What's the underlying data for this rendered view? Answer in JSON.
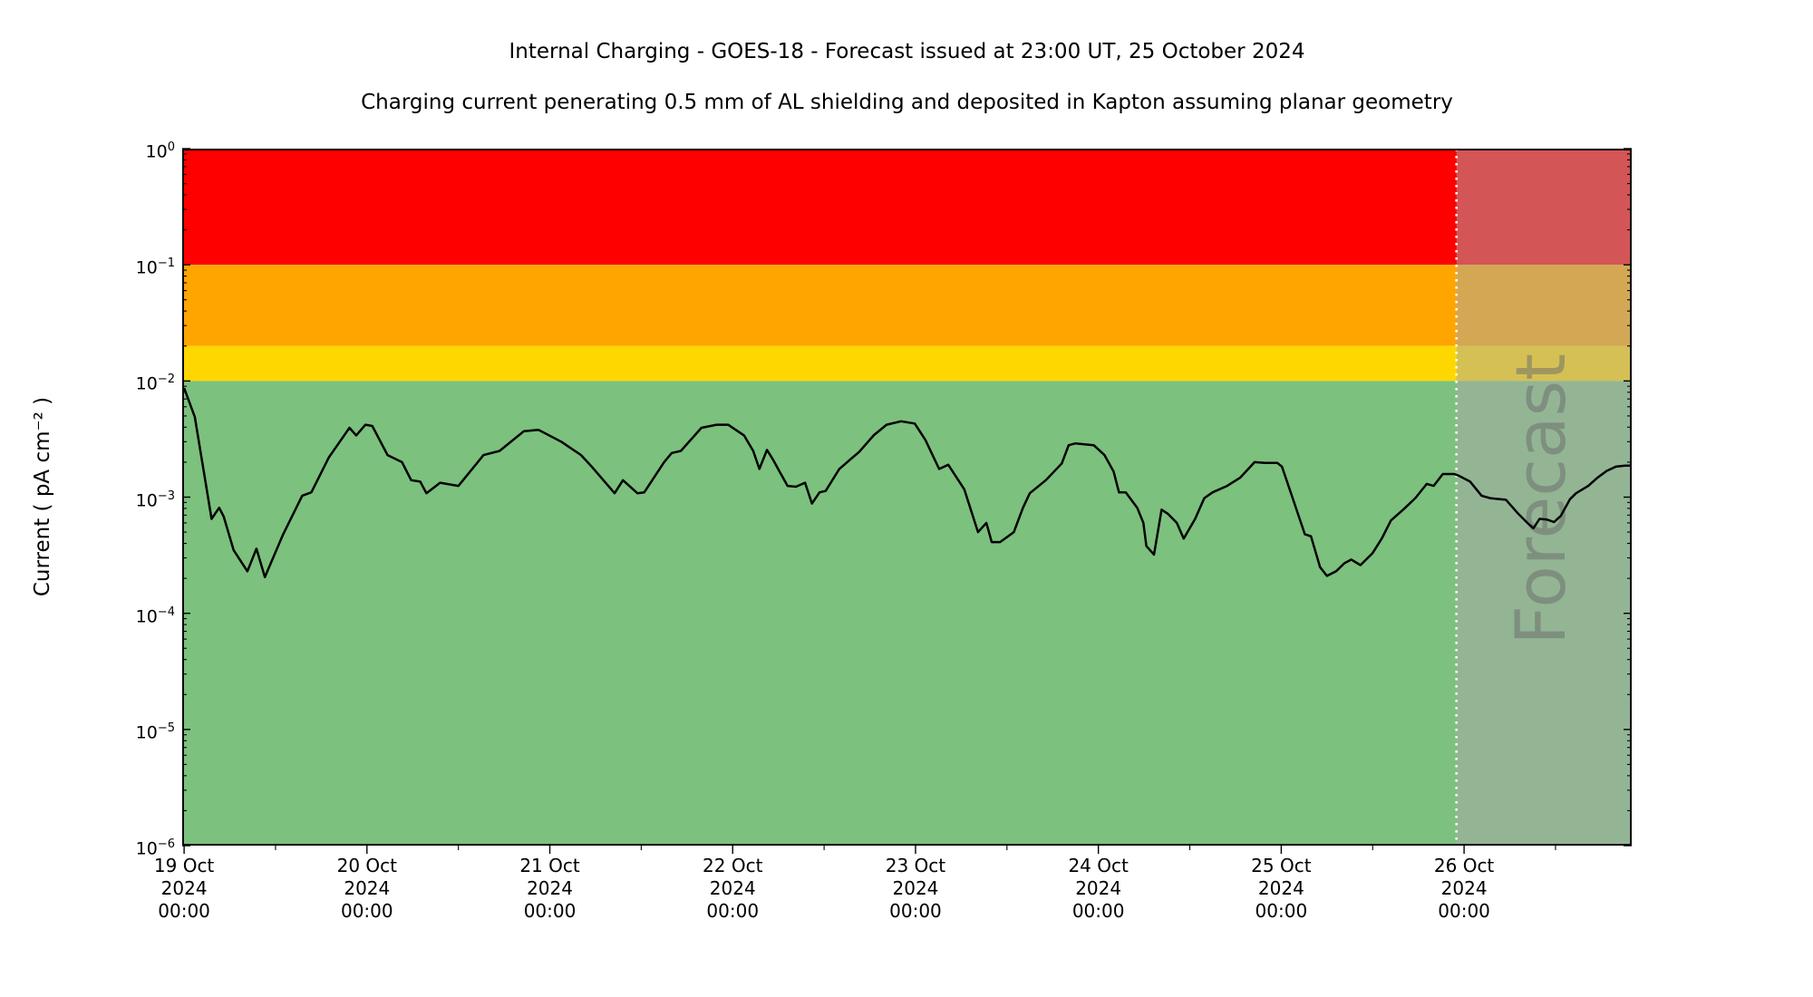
{
  "header": {
    "title": "Internal Charging - GOES-18 - Forecast issued at 23:00 UT, 25 October 2024",
    "subtitle": "Charging current penerating 0.5 mm of AL shielding and deposited in Kapton assuming planar geometry"
  },
  "chart_data": {
    "type": "line",
    "title": "Internal Charging - GOES-18 - Forecast issued at 23:00 UT, 25 October 2024",
    "subtitle": "Charging current penerating 0.5 mm of AL shielding and deposited in Kapton assuming planar geometry",
    "ylabel": "Current ( pA cm⁻² )",
    "xlabel": "",
    "grid": false,
    "y_axis": {
      "scale": "log",
      "ylim": [
        1e-06,
        1.0
      ],
      "major_tick_exponents": [
        0,
        -1,
        -2,
        -3,
        -4,
        -5,
        -6
      ],
      "tick_base": "10"
    },
    "x_axis": {
      "min_hours": -0.25,
      "max_hours": 190.0,
      "hours_origin": "19 Oct 2024 00:00",
      "major_tick_hours": [
        0,
        24,
        48,
        72,
        96,
        120,
        144,
        168
      ],
      "major_tick_labels": [
        [
          "19 Oct",
          "2024",
          "00:00"
        ],
        [
          "20 Oct",
          "2024",
          "00:00"
        ],
        [
          "21 Oct",
          "2024",
          "00:00"
        ],
        [
          "22 Oct",
          "2024",
          "00:00"
        ],
        [
          "23 Oct",
          "2024",
          "00:00"
        ],
        [
          "24 Oct",
          "2024",
          "00:00"
        ],
        [
          "25 Oct",
          "2024",
          "00:00"
        ],
        [
          "26 Oct",
          "2024",
          "00:00"
        ]
      ],
      "minor_tick_hours": [
        12,
        36,
        60,
        84,
        108,
        132,
        156,
        180
      ]
    },
    "threshold_bands": [
      {
        "name": "red-alert-band",
        "vmin": 0.1,
        "vmax": 1.0,
        "color": "#fe0000"
      },
      {
        "name": "orange-alert-band",
        "vmin": 0.02,
        "vmax": 0.1,
        "color": "#ffa500"
      },
      {
        "name": "yellow-alert-band",
        "vmin": 0.01,
        "vmax": 0.02,
        "color": "#ffd700"
      },
      {
        "name": "green-safe-band",
        "vmin": 1e-06,
        "vmax": 0.01,
        "color": "#7cc17e"
      }
    ],
    "forecast": {
      "start_hour": 167,
      "issued": "23:00 UT, 25 October 2024",
      "label": "Forecast",
      "label_color": "rgba(105,105,105,0.5)",
      "overlay_color": "rgba(169,169,169,0.5)",
      "divider_color": "#ffffff",
      "divider_style": "dotted"
    },
    "series": [
      {
        "name": "charging-current",
        "color": "#000000",
        "width": 2.5,
        "points": [
          [
            0,
            0.0087
          ],
          [
            1.4,
            0.0049
          ],
          [
            3.6,
            0.00065
          ],
          [
            4.6,
            0.00081
          ],
          [
            5.2,
            0.00068
          ],
          [
            6.5,
            0.00035
          ],
          [
            8.3,
            0.00023
          ],
          [
            9.5,
            0.00036
          ],
          [
            10.6,
            0.000205
          ],
          [
            13,
            0.00048
          ],
          [
            15.5,
            0.00103
          ],
          [
            16.7,
            0.0011
          ],
          [
            19,
            0.0022
          ],
          [
            21.7,
            0.00395
          ],
          [
            22.6,
            0.0034
          ],
          [
            23.8,
            0.0042
          ],
          [
            24.7,
            0.0041
          ],
          [
            26.7,
            0.0023
          ],
          [
            28.6,
            0.002
          ],
          [
            29.8,
            0.0014
          ],
          [
            31,
            0.00136
          ],
          [
            31.8,
            0.00108
          ],
          [
            33.6,
            0.00133
          ],
          [
            36,
            0.00125
          ],
          [
            39.3,
            0.0023
          ],
          [
            41.4,
            0.0025
          ],
          [
            44.6,
            0.0037
          ],
          [
            46.5,
            0.0038
          ],
          [
            49.5,
            0.003
          ],
          [
            52.1,
            0.0023
          ],
          [
            53.6,
            0.0018
          ],
          [
            56.5,
            0.00108
          ],
          [
            57.6,
            0.0014
          ],
          [
            59.5,
            0.00108
          ],
          [
            60.4,
            0.0011
          ],
          [
            63,
            0.002
          ],
          [
            64,
            0.0024
          ],
          [
            65.2,
            0.0025
          ],
          [
            67.9,
            0.00395
          ],
          [
            69.9,
            0.0042
          ],
          [
            71.4,
            0.0042
          ],
          [
            73.5,
            0.0034
          ],
          [
            74.7,
            0.0025
          ],
          [
            75.5,
            0.00175
          ],
          [
            76.5,
            0.00255
          ],
          [
            77.3,
            0.0021
          ],
          [
            78,
            0.00173
          ],
          [
            79.2,
            0.00125
          ],
          [
            80.3,
            0.00123
          ],
          [
            81.5,
            0.00133
          ],
          [
            82.4,
            0.00088
          ],
          [
            83.4,
            0.0011
          ],
          [
            84.2,
            0.00113
          ],
          [
            86,
            0.00175
          ],
          [
            87.4,
            0.0021
          ],
          [
            88.6,
            0.00245
          ],
          [
            90.5,
            0.0034
          ],
          [
            92.2,
            0.0042
          ],
          [
            94.1,
            0.0045
          ],
          [
            95.9,
            0.0043
          ],
          [
            97.3,
            0.0031
          ],
          [
            99.1,
            0.00175
          ],
          [
            100.3,
            0.0019
          ],
          [
            102.4,
            0.00117
          ],
          [
            104.2,
            0.0005
          ],
          [
            105.3,
            0.0006
          ],
          [
            106,
            0.00041
          ],
          [
            107.1,
            0.00041
          ],
          [
            108.9,
            0.0005
          ],
          [
            110.1,
            0.00081
          ],
          [
            111,
            0.00108
          ],
          [
            113.1,
            0.0014
          ],
          [
            115.2,
            0.00195
          ],
          [
            116.1,
            0.0028
          ],
          [
            117,
            0.0029
          ],
          [
            119.4,
            0.0028
          ],
          [
            120.8,
            0.0023
          ],
          [
            122,
            0.00166
          ],
          [
            122.7,
            0.0011
          ],
          [
            123.6,
            0.0011
          ],
          [
            125.1,
            0.00081
          ],
          [
            125.9,
            0.0006
          ],
          [
            126.3,
            0.00038
          ],
          [
            127.3,
            0.00032
          ],
          [
            128.3,
            0.00078
          ],
          [
            129.1,
            0.00072
          ],
          [
            130.3,
            0.0006
          ],
          [
            131.2,
            0.00044
          ],
          [
            132.7,
            0.00065
          ],
          [
            133.9,
            0.00098
          ],
          [
            135,
            0.0011
          ],
          [
            136.9,
            0.00125
          ],
          [
            138.6,
            0.00147
          ],
          [
            140.5,
            0.002
          ],
          [
            141.9,
            0.00197
          ],
          [
            143.5,
            0.00197
          ],
          [
            144.1,
            0.00183
          ],
          [
            145.5,
            0.00098
          ],
          [
            147.1,
            0.00048
          ],
          [
            147.9,
            0.00046
          ],
          [
            149.1,
            0.00025
          ],
          [
            150,
            0.00021
          ],
          [
            151.2,
            0.00023
          ],
          [
            152.3,
            0.00027
          ],
          [
            153.2,
            0.00029
          ],
          [
            154.4,
            0.00026
          ],
          [
            156,
            0.00033
          ],
          [
            157.2,
            0.00044
          ],
          [
            158.4,
            0.00063
          ],
          [
            160,
            0.00078
          ],
          [
            161.6,
            0.00098
          ],
          [
            163.1,
            0.0013
          ],
          [
            164,
            0.00125
          ],
          [
            165.2,
            0.00158
          ],
          [
            166.7,
            0.00158
          ],
          [
            167.3,
            0.00153
          ],
          [
            168.8,
            0.00136
          ],
          [
            170.3,
            0.00103
          ],
          [
            171.4,
            0.00098
          ],
          [
            172.7,
            0.00096
          ],
          [
            173.5,
            0.00095
          ],
          [
            175.1,
            0.00072
          ],
          [
            176.3,
            0.0006
          ],
          [
            177.1,
            0.00054
          ],
          [
            177.9,
            0.00065
          ],
          [
            178.9,
            0.00064
          ],
          [
            179.8,
            0.00061
          ],
          [
            180.7,
            0.00069
          ],
          [
            181.9,
            0.00096
          ],
          [
            182.7,
            0.00108
          ],
          [
            184.3,
            0.00125
          ],
          [
            185.5,
            0.00147
          ],
          [
            186.7,
            0.00168
          ],
          [
            187.9,
            0.00183
          ],
          [
            189.1,
            0.00187
          ],
          [
            190,
            0.00187
          ]
        ]
      }
    ]
  }
}
